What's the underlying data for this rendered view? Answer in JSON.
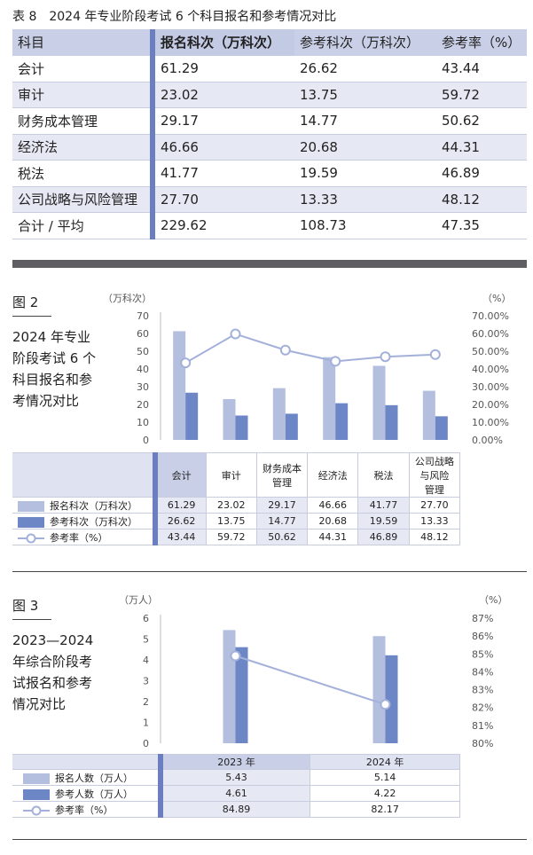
{
  "table8": {
    "title": "表 8　2024 年专业阶段考试 6 个科目报名和参考情况对比",
    "headers": [
      "科目",
      "报名科次（万科次）",
      "参考科次（万科次）",
      "参考率（%）"
    ],
    "rows": [
      [
        "会计",
        "61.29",
        "26.62",
        "43.44"
      ],
      [
        "审计",
        "23.02",
        "13.75",
        "59.72"
      ],
      [
        "财务成本管理",
        "29.17",
        "14.77",
        "50.62"
      ],
      [
        "经济法",
        "46.66",
        "20.68",
        "44.31"
      ],
      [
        "税法",
        "41.77",
        "19.59",
        "46.89"
      ],
      [
        "公司战略与风险管理",
        "27.70",
        "13.33",
        "48.12"
      ],
      [
        "合计 / 平均",
        "229.62",
        "108.73",
        "47.35"
      ]
    ]
  },
  "fig2": {
    "label": "图 2",
    "caption_lines": [
      "2024 年专业",
      "阶段考试 6 个",
      "科目报名和参",
      "考情况对比"
    ],
    "left_unit": "（万科次）",
    "right_unit": "（%）",
    "legend": [
      "报名科次（万科次）",
      "参考科次（万科次）",
      "参考率（%）"
    ],
    "category_labels": [
      [
        "会计"
      ],
      [
        "审计"
      ],
      [
        "财务成本",
        "管理"
      ],
      [
        "经济法"
      ],
      [
        "税法"
      ],
      [
        "公司战略",
        "与风险",
        "管理"
      ]
    ]
  },
  "fig3": {
    "label": "图 3",
    "caption_lines": [
      "2023—2024",
      "年综合阶段考",
      "试报名和参考",
      "情况对比"
    ],
    "left_unit": "（万人）",
    "right_unit": "（%）",
    "legend": [
      "报名人数（万人）",
      "参考人数（万人）",
      "参考率（%）"
    ]
  },
  "chart_data": [
    {
      "type": "bar",
      "categories": [
        "会计",
        "审计",
        "财务成本管理",
        "经济法",
        "税法",
        "公司战略与风险管理"
      ],
      "series": [
        {
          "name": "报名科次（万科次）",
          "values": [
            61.29,
            23.02,
            29.17,
            46.66,
            41.77,
            27.7
          ],
          "color": "#b4bfdf"
        },
        {
          "name": "参考科次（万科次）",
          "values": [
            26.62,
            13.75,
            14.77,
            20.68,
            19.59,
            13.33
          ],
          "color": "#6c86c6"
        },
        {
          "name": "参考率（%）",
          "values": [
            43.44,
            59.72,
            50.62,
            44.31,
            46.89,
            48.12
          ],
          "type": "line",
          "axis": "right",
          "color": "#a3b1da"
        }
      ],
      "ylim": [
        0,
        70
      ],
      "y2lim": [
        0,
        70
      ],
      "yticks": [
        "0",
        "10",
        "20",
        "30",
        "40",
        "50",
        "60",
        "70"
      ],
      "y2ticks": [
        "0.00%",
        "10.00%",
        "20.00%",
        "30.00%",
        "40.00%",
        "50.00%",
        "60.00%",
        "70.00%"
      ],
      "table": [
        [
          "61.29",
          "23.02",
          "29.17",
          "46.66",
          "41.77",
          "27.70"
        ],
        [
          "26.62",
          "13.75",
          "14.77",
          "20.68",
          "19.59",
          "13.33"
        ],
        [
          "43.44",
          "59.72",
          "50.62",
          "44.31",
          "46.89",
          "48.12"
        ]
      ]
    },
    {
      "type": "bar",
      "categories": [
        "2023 年",
        "2024 年"
      ],
      "series": [
        {
          "name": "报名人数（万人）",
          "values": [
            5.43,
            5.14
          ],
          "color": "#b4bfdf"
        },
        {
          "name": "参考人数（万人）",
          "values": [
            4.61,
            4.22
          ],
          "color": "#6c86c6"
        },
        {
          "name": "参考率（%）",
          "values": [
            84.89,
            82.17
          ],
          "type": "line",
          "axis": "right",
          "color": "#a3b1da"
        }
      ],
      "ylim": [
        0,
        6
      ],
      "y2lim": [
        80,
        87
      ],
      "yticks": [
        "0",
        "1",
        "2",
        "3",
        "4",
        "5",
        "6"
      ],
      "y2ticks": [
        "80%",
        "81%",
        "82%",
        "83%",
        "84%",
        "85%",
        "86%",
        "87%"
      ],
      "table": [
        [
          "5.43",
          "5.14"
        ],
        [
          "4.61",
          "4.22"
        ],
        [
          "84.89",
          "82.17"
        ]
      ]
    }
  ]
}
